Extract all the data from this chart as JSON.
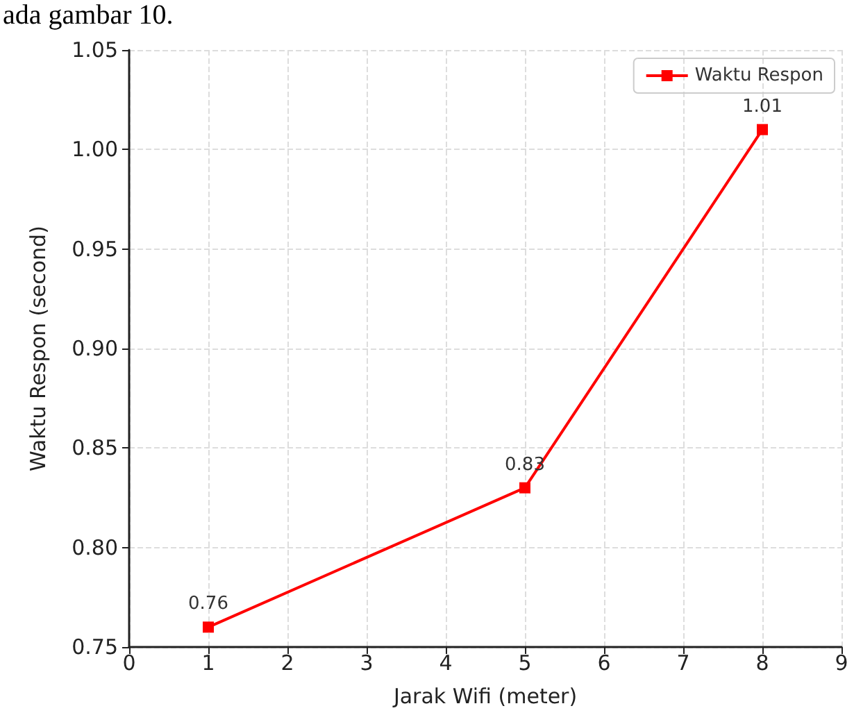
{
  "chart_data": {
    "type": "line",
    "xlabel": "Jarak Wifi (meter)",
    "ylabel": "Waktu Respon (second)",
    "annotations": [
      "ada gambar 10."
    ],
    "x": [
      1,
      5,
      8
    ],
    "series": [
      {
        "name": "Waktu Respon",
        "color": "#ff0000",
        "values": [
          0.76,
          0.83,
          1.01
        ]
      }
    ],
    "xlim": [
      0,
      9
    ],
    "xticks": [
      0,
      1,
      2,
      3,
      4,
      5,
      6,
      7,
      8,
      9
    ],
    "ylim": [
      0.75,
      1.05
    ],
    "yticks": [
      0.75,
      {
        "value": 0.8,
        "label": "0.80"
      },
      0.85,
      {
        "value": 0.9,
        "label": "0.90"
      },
      0.95,
      {
        "value": 1.0,
        "label": "1.00"
      },
      1.05
    ],
    "grid": true,
    "legend": "top right",
    "marker": "square",
    "line_style": "solid",
    "data_labels": true
  }
}
